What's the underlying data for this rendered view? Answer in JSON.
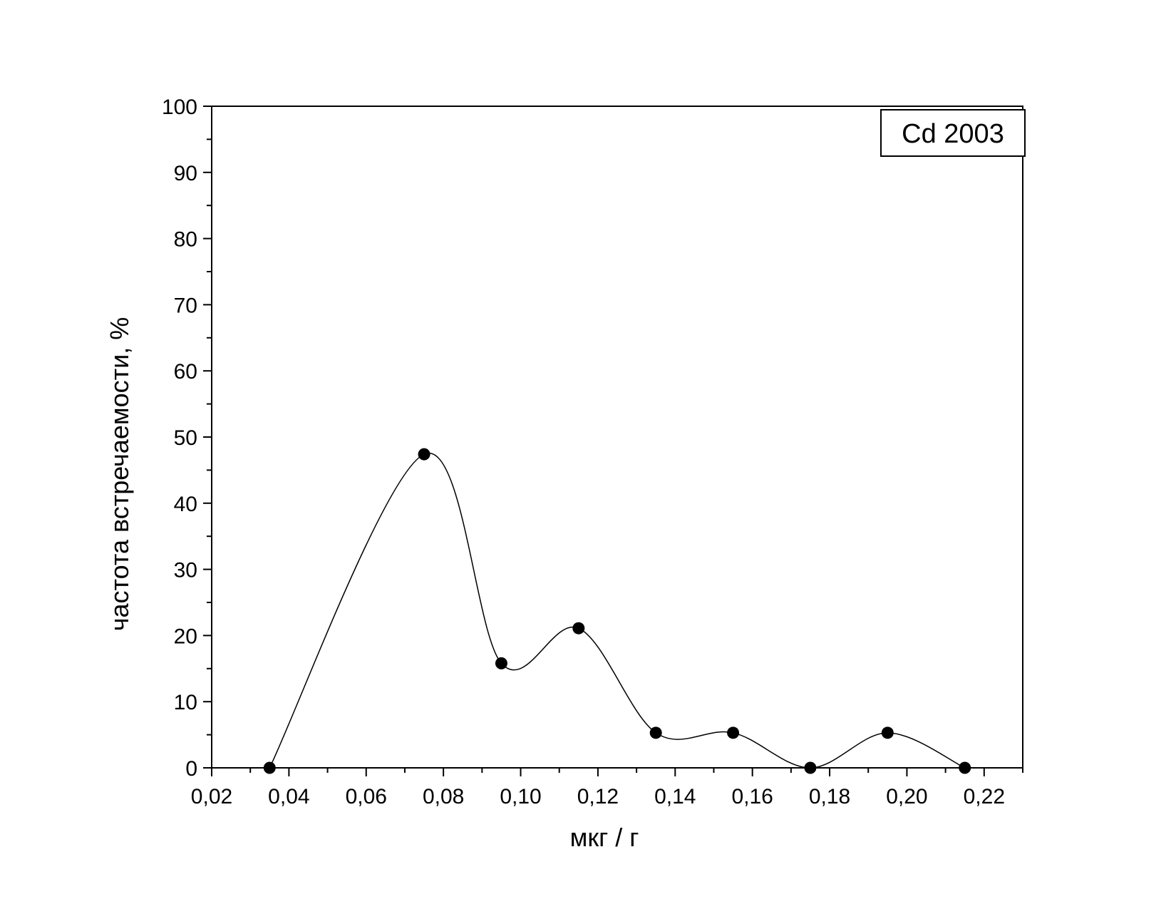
{
  "chart_data": {
    "type": "line",
    "title": "",
    "xlabel": "мкг / г",
    "ylabel": "частота встречаемости, %",
    "legend": {
      "label": "Cd 2003",
      "placement": "top-right"
    },
    "xlim": [
      0.02,
      0.23
    ],
    "ylim": [
      0,
      100
    ],
    "x_ticks": [
      0.02,
      0.04,
      0.06,
      0.08,
      0.1,
      0.12,
      0.14,
      0.16,
      0.18,
      0.2,
      0.22
    ],
    "x_tick_labels": [
      "0,02",
      "0,04",
      "0,06",
      "0,08",
      "0,10",
      "0,12",
      "0,14",
      "0,16",
      "0,18",
      "0,20",
      "0,22"
    ],
    "y_ticks": [
      0,
      10,
      20,
      30,
      40,
      50,
      60,
      70,
      80,
      90,
      100
    ],
    "y_tick_labels": [
      "0",
      "10",
      "20",
      "30",
      "40",
      "50",
      "60",
      "70",
      "80",
      "90",
      "100"
    ],
    "grid": false,
    "series": [
      {
        "x": [
          0.035,
          0.075,
          0.095,
          0.115,
          0.135,
          0.155,
          0.175,
          0.195,
          0.215
        ],
        "y": [
          0,
          47.4,
          15.8,
          21.1,
          5.3,
          5.3,
          0,
          5.3,
          0
        ],
        "marker": "filled-circle",
        "line": "smooth-spline",
        "color": "#000000"
      }
    ]
  }
}
